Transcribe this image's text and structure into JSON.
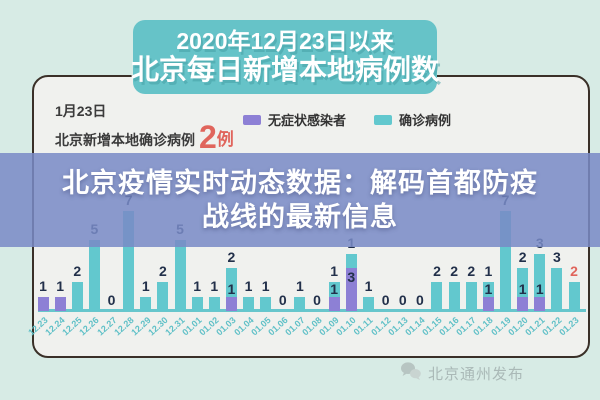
{
  "page": {
    "banner": {
      "line1": "2020年12月23日以来",
      "line2": "北京每日新增本地病例数"
    },
    "info": {
      "date": "1月23日",
      "label": "北京新增本地确诊病例",
      "count": "2",
      "count_unit": "例"
    },
    "legend": [
      {
        "label": "无症状感染者",
        "color": "#8d80d5"
      },
      {
        "label": "确诊病例",
        "color": "#62c8ce"
      }
    ],
    "headline": {
      "line1": "北京疫情实时动态数据：解码首都防疫",
      "line2": "战线的最新信息"
    },
    "watermark": {
      "icon": "wechat-speech-bubbles",
      "source": "北京通州发布"
    }
  },
  "colors": {
    "background": "#d7ebe5",
    "banner_teal": "#66c3c8",
    "card_bg": "#f0f1ee",
    "card_border": "#3a3028",
    "overlay_blue": "#7a8ac6",
    "confirmed_teal": "#62c8ce",
    "asymptomatic_purple": "#8d80d5",
    "label_dark": "#22304a",
    "highlight_red": "#e0655c",
    "tick_teal": "#5fc0c7"
  },
  "chart_data": {
    "type": "bar",
    "stacked": true,
    "title": "2020年12月23日以来 北京每日新增本地病例数",
    "xlabel": "",
    "ylabel": "",
    "ylim": [
      0,
      7
    ],
    "grid": false,
    "legend_position": "top",
    "categories": [
      "12.23",
      "12.24",
      "12.25",
      "12.26",
      "12.27",
      "12.28",
      "12.29",
      "12.30",
      "12.31",
      "01.01",
      "01.02",
      "01.03",
      "01.04",
      "01.05",
      "01.06",
      "01.07",
      "01.08",
      "01.09",
      "01.10",
      "01.11",
      "01.12",
      "01.13",
      "01.14",
      "01.15",
      "01.16",
      "01.17",
      "01.18",
      "01.19",
      "01.20",
      "01.21",
      "01.22",
      "01.23"
    ],
    "series": [
      {
        "name": "确诊病例",
        "color": "#62c8ce",
        "values": [
          0,
          0,
          2,
          5,
          0,
          7,
          1,
          2,
          5,
          1,
          1,
          2,
          1,
          1,
          0,
          1,
          0,
          1,
          1,
          1,
          0,
          0,
          0,
          2,
          2,
          2,
          1,
          7,
          2,
          3,
          3,
          2
        ]
      },
      {
        "name": "无症状感染者",
        "color": "#8d80d5",
        "values": [
          1,
          1,
          0,
          0,
          0,
          0,
          0,
          0,
          0,
          0,
          0,
          1,
          0,
          0,
          0,
          0,
          0,
          1,
          3,
          0,
          0,
          0,
          0,
          0,
          0,
          0,
          1,
          0,
          1,
          1,
          0,
          0
        ]
      }
    ],
    "label_color": "#22304a",
    "last_label_color": "#e0655c"
  }
}
